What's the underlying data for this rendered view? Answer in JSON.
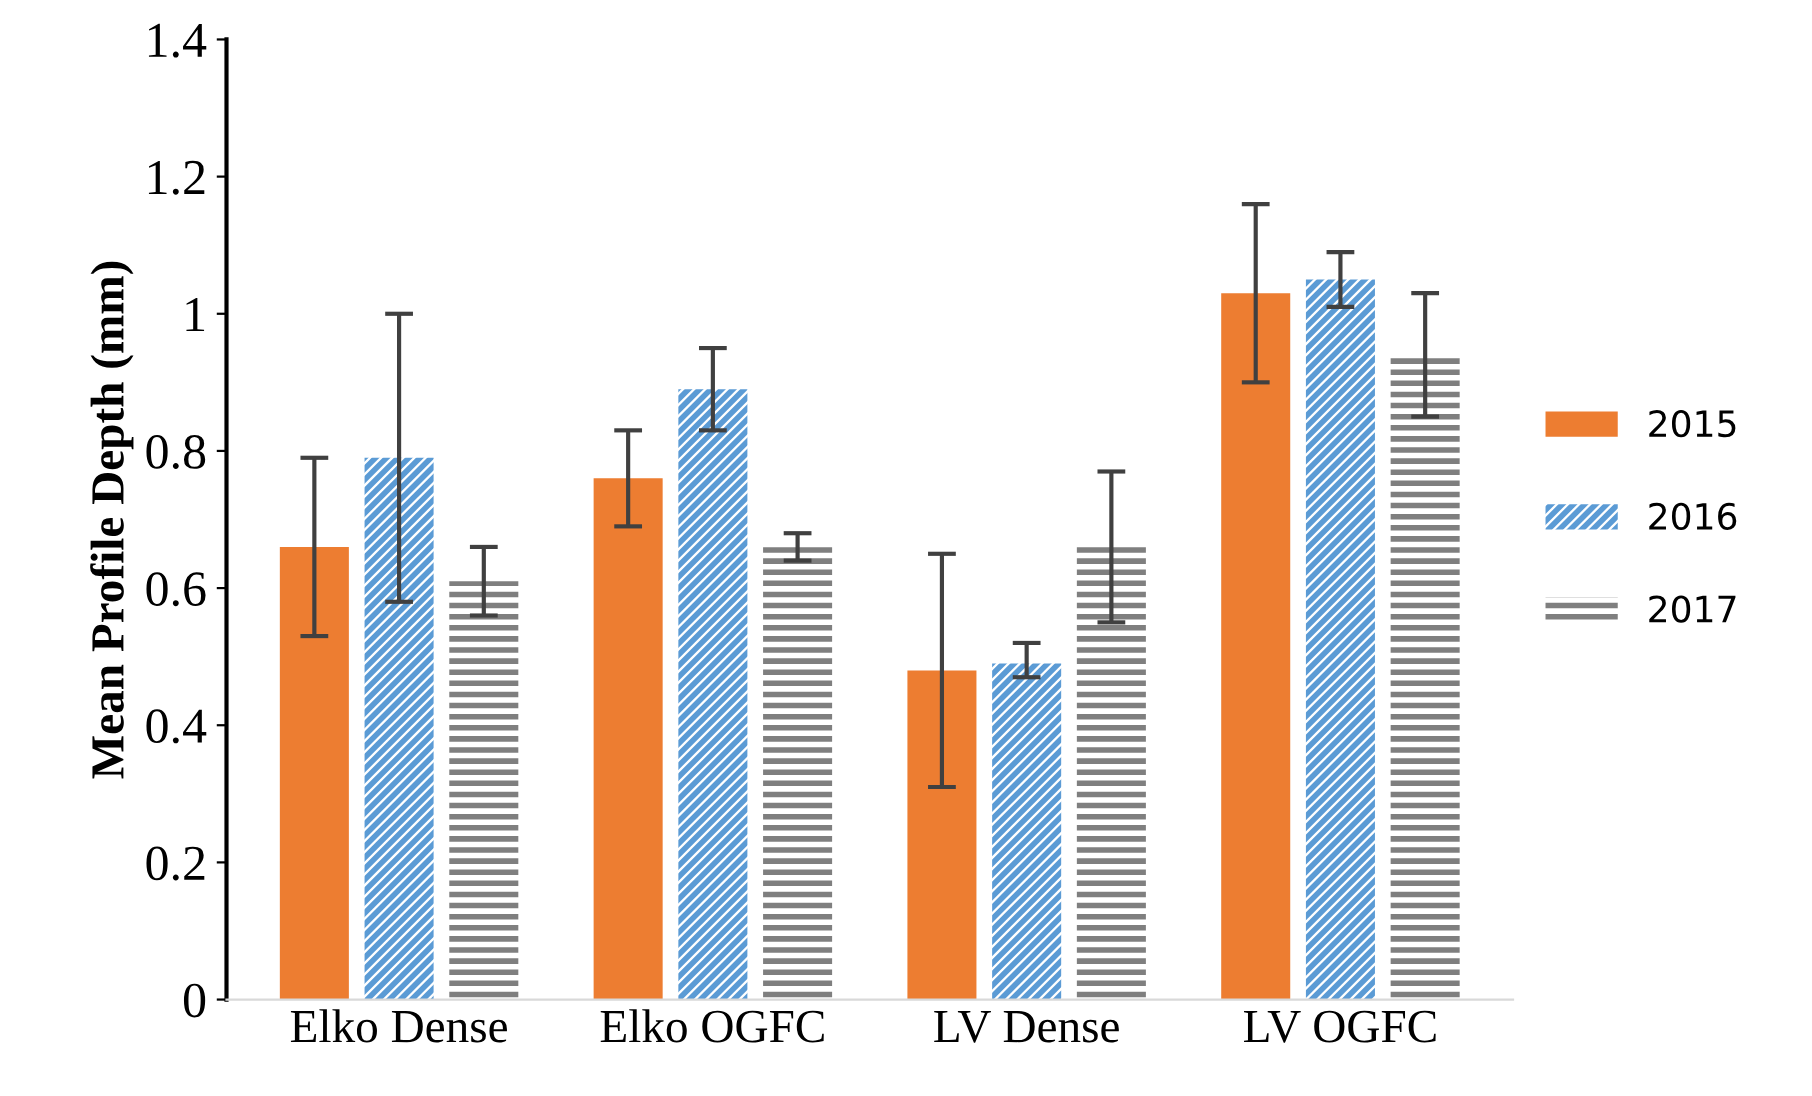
{
  "chart_data": {
    "type": "bar",
    "ylabel": "Mean Profile Depth (mm)",
    "categories": [
      "Elko Dense",
      "Elko OGFC",
      "LV Dense",
      "LV OGFC"
    ],
    "series": [
      {
        "name": "2015",
        "color": "#ed7d31",
        "values": [
          0.66,
          0.76,
          0.48,
          1.03
        ],
        "errors": [
          [
            0.53,
            0.79
          ],
          [
            0.69,
            0.83
          ],
          [
            0.31,
            0.65
          ],
          [
            0.9,
            1.16
          ]
        ]
      },
      {
        "name": "2016",
        "color": "#5b9bd5",
        "values": [
          0.79,
          0.89,
          0.49,
          1.05
        ],
        "errors": [
          [
            0.58,
            1.0
          ],
          [
            0.83,
            0.95
          ],
          [
            0.47,
            0.52
          ],
          [
            1.01,
            1.09
          ]
        ]
      },
      {
        "name": "2017",
        "color": "#7f7f7f",
        "values": [
          0.61,
          0.66,
          0.66,
          0.94
        ],
        "errors": [
          [
            0.56,
            0.66
          ],
          [
            0.64,
            0.68
          ],
          [
            0.55,
            0.77
          ],
          [
            0.85,
            1.03
          ]
        ]
      }
    ],
    "ylim": [
      0,
      1.4
    ],
    "yticks": [
      0,
      0.2,
      0.4,
      0.6,
      0.8,
      1,
      1.2,
      1.4
    ],
    "grid": false,
    "legend": "right"
  }
}
